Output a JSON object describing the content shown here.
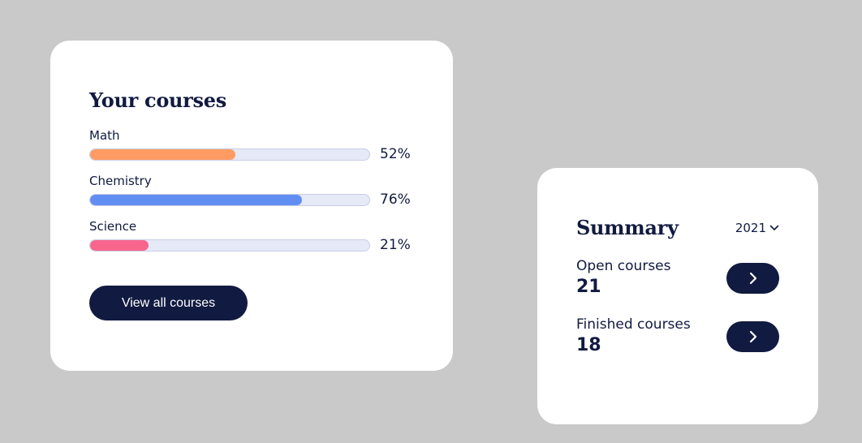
{
  "courses": {
    "title": "Your courses",
    "items": [
      {
        "name": "Math",
        "progress": 52,
        "label": "52%",
        "color": "#ff9b63"
      },
      {
        "name": "Chemistry",
        "progress": 76,
        "label": "76%",
        "color": "#628df2"
      },
      {
        "name": "Science",
        "progress": 21,
        "label": "21%",
        "color": "#f8668d"
      }
    ],
    "view_all_label": "View all courses"
  },
  "summary": {
    "title": "Summary",
    "year": "2021",
    "year_icon": "chevron-down-icon",
    "items": [
      {
        "label": "Open courses",
        "value": "21",
        "icon": "chevron-right-icon"
      },
      {
        "label": "Finished courses",
        "value": "18",
        "icon": "chevron-right-icon"
      }
    ]
  },
  "colors": {
    "background": "#c9c9c9",
    "card": "#ffffff",
    "accent": "#111a40",
    "track": "#e6e9f6"
  }
}
